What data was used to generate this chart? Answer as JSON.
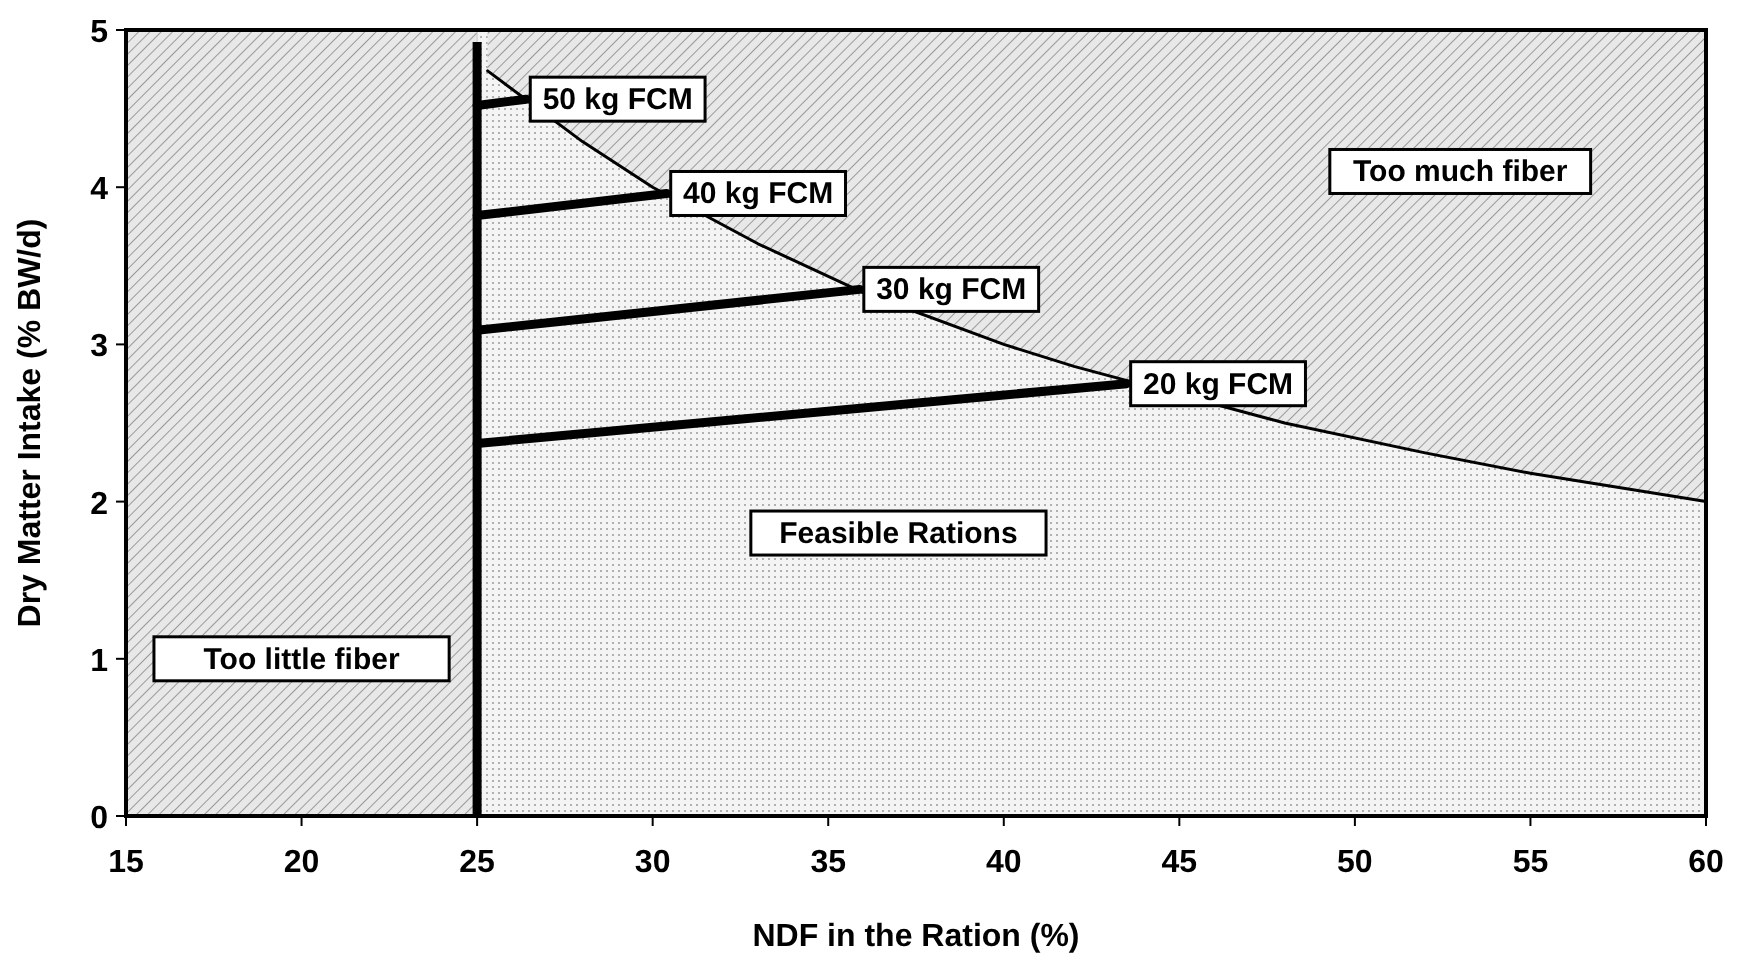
{
  "chart_data": {
    "type": "line",
    "xlabel": "NDF in the Ration (%)",
    "ylabel": "Dry Matter Intake (% BW/d)",
    "xlim": [
      15,
      60
    ],
    "ylim": [
      0,
      5
    ],
    "xticks": [
      15,
      20,
      25,
      30,
      35,
      40,
      45,
      50,
      55,
      60
    ],
    "yticks": [
      0,
      1,
      2,
      3,
      4,
      5
    ],
    "grid": false,
    "legend": false,
    "marker": "none",
    "series": [
      {
        "type": "line",
        "color": "#000000",
        "x": [
          25.3,
          28,
          30,
          33,
          36,
          40,
          42,
          48,
          52,
          55,
          60
        ],
        "values": [
          4.74,
          4.29,
          4,
          3.64,
          3.33,
          3,
          2.86,
          2.5,
          2.31,
          2.18,
          2
        ]
      },
      {
        "name": "50 kg FCM",
        "color": "#000000",
        "x": [
          25,
          26.4
        ],
        "values": [
          4.52,
          4.56
        ]
      },
      {
        "name": "40 kg FCM",
        "color": "#000000",
        "x": [
          25,
          30.4
        ],
        "values": [
          3.82,
          3.96
        ]
      },
      {
        "name": "30 kg FCM",
        "color": "#000000",
        "x": [
          25,
          35.9
        ],
        "values": [
          3.09,
          3.35
        ]
      },
      {
        "name": "20 kg FCM",
        "color": "#000000",
        "x": [
          25,
          43.5
        ],
        "values": [
          2.37,
          2.75
        ]
      }
    ],
    "ref_lines": [
      {
        "axis": "x",
        "value": 25,
        "color": "#000000"
      }
    ],
    "bands": [
      {
        "axis": "x",
        "from": 15,
        "to": 25,
        "label": "Too little fiber",
        "color": "#c8c8c8"
      }
    ],
    "annotations": [
      "Feasible Rations",
      "Too much fiber"
    ]
  }
}
